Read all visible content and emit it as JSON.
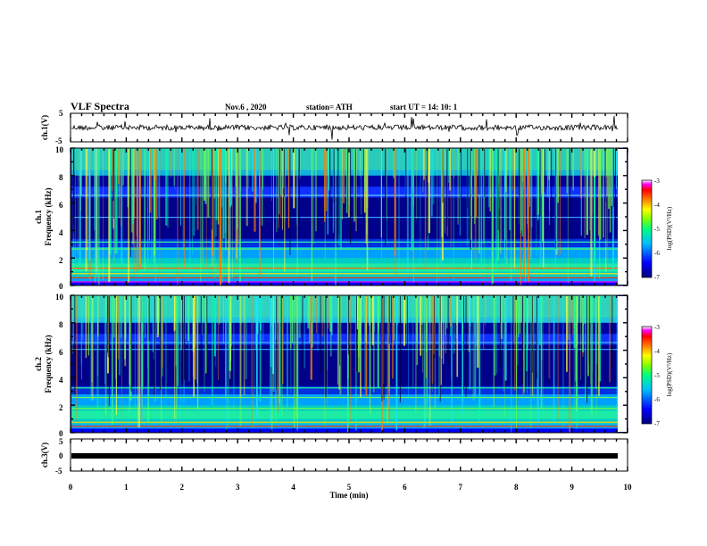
{
  "header": {
    "title": "VLF Spectra",
    "date": "Nov.6  , 2020",
    "station": "station= ATH",
    "start": "start  UT =   14: 10: 1"
  },
  "colors": {
    "background": "#00008b",
    "colormap": [
      "#000080",
      "#0000ff",
      "#00bfff",
      "#00ff80",
      "#80ff00",
      "#ffff00",
      "#ff8000",
      "#ff0000",
      "#ff00ff",
      "#ffffff"
    ]
  },
  "chart_data": [
    {
      "type": "line",
      "panel": "ch1-waveform",
      "ylabel": "ch.1(V)",
      "ylim": [
        -5,
        5
      ],
      "yticks": [
        "5",
        "-5"
      ],
      "xlim": [
        0,
        10
      ],
      "baseline": 0
    },
    {
      "type": "heatmap",
      "panel": "ch1-spectrogram",
      "ylabel_top": "ch.1",
      "ylabel": "Frequency  (kHz)",
      "ylim": [
        0,
        10
      ],
      "yticks": [
        "0",
        "2",
        "4",
        "6",
        "8",
        "10"
      ],
      "xlim": [
        0,
        10
      ],
      "colorbar": {
        "label": "log(PSD)(V²/Hz)",
        "range": [
          -7,
          -3
        ],
        "ticks": [
          "-3",
          "-4",
          "-5",
          "-6",
          "-7"
        ]
      }
    },
    {
      "type": "heatmap",
      "panel": "ch2-spectrogram",
      "ylabel_top": "ch.2",
      "ylabel": "Frequency  (kHz)",
      "ylim": [
        0,
        10
      ],
      "yticks": [
        "0",
        "2",
        "4",
        "6",
        "8",
        "10"
      ],
      "xlim": [
        0,
        10
      ],
      "colorbar": {
        "label": "log(PSD)(V²/Hz)",
        "range": [
          -7,
          -3
        ],
        "ticks": [
          "-3",
          "-4",
          "-5",
          "-6",
          "-7"
        ]
      }
    },
    {
      "type": "line",
      "panel": "ch3-waveform",
      "ylabel": "ch.3(V)",
      "ylim": [
        -5,
        5
      ],
      "yticks": [
        "5",
        "0",
        "-5"
      ],
      "xlim": [
        0,
        10
      ],
      "baseline": 0
    }
  ],
  "xaxis": {
    "label": "Time  (min)",
    "ticks": [
      "0",
      "1",
      "2",
      "3",
      "4",
      "5",
      "6",
      "7",
      "8",
      "9",
      "10"
    ]
  }
}
